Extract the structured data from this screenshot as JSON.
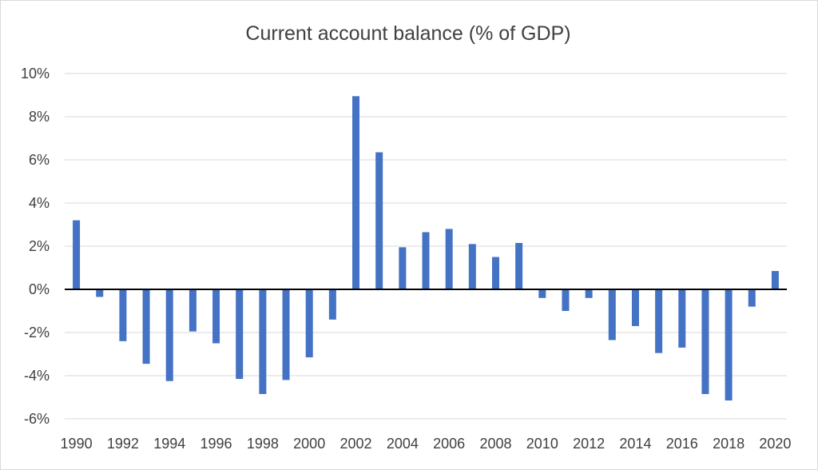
{
  "chart_data": {
    "type": "bar",
    "title": "Current account balance (% of GDP)",
    "xlabel": "",
    "ylabel": "",
    "ylim": [
      -6,
      10
    ],
    "y_tick_values": [
      10,
      8,
      6,
      4,
      2,
      0,
      -2,
      -4,
      -6
    ],
    "y_tick_labels": [
      "10%",
      "8%",
      "6%",
      "4%",
      "2%",
      "0%",
      "-2%",
      "-4%",
      "-6%"
    ],
    "x_tick_labels": [
      "1990",
      "1992",
      "1994",
      "1996",
      "1998",
      "2000",
      "2002",
      "2004",
      "2006",
      "2008",
      "2010",
      "2012",
      "2014",
      "2016",
      "2018",
      "2020"
    ],
    "grid": true,
    "legend": "none",
    "bar_color": "#4472C4",
    "gridline_color": "#d9d9d9",
    "zero_line_color": "#000000",
    "categories": [
      "1990",
      "1991",
      "1992",
      "1993",
      "1994",
      "1995",
      "1996",
      "1997",
      "1998",
      "1999",
      "2000",
      "2001",
      "2002",
      "2003",
      "2004",
      "2005",
      "2006",
      "2007",
      "2008",
      "2009",
      "2010",
      "2011",
      "2012",
      "2013",
      "2014",
      "2015",
      "2016",
      "2017",
      "2018",
      "2019",
      "2020"
    ],
    "values": [
      3.2,
      -0.35,
      -2.4,
      -3.45,
      -4.25,
      -1.95,
      -2.5,
      -4.15,
      -4.85,
      -4.2,
      -3.15,
      -1.4,
      8.95,
      6.35,
      1.95,
      2.65,
      2.8,
      2.1,
      1.5,
      2.15,
      -0.4,
      -1.0,
      -0.4,
      -2.35,
      -1.7,
      -2.95,
      -2.7,
      -4.85,
      -5.15,
      -0.8,
      0.85
    ]
  }
}
